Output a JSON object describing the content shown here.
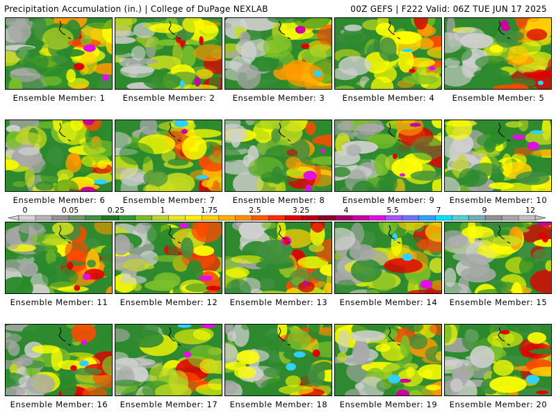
{
  "header": {
    "title": "Precipitation Accumulation (in.) | College of DuPage NEXLAB",
    "valid": "00Z GEFS | F222 Valid: 06Z TUE JUN 17 2025"
  },
  "members": [
    "Ensemble Member: 1",
    "Ensemble Member: 2",
    "Ensemble Member: 3",
    "Ensemble Member: 4",
    "Ensemble Member: 5",
    "Ensemble Member: 6",
    "Ensemble Member: 7",
    "Ensemble Member: 8",
    "Ensemble Member: 9",
    "Ensemble Member: 10",
    "Ensemble Member: 11",
    "Ensemble Member: 12",
    "Ensemble Member: 13",
    "Ensemble Member: 14",
    "Ensemble Member: 15",
    "Ensemble Member: 16",
    "Ensemble Member: 17",
    "Ensemble Member: 18",
    "Ensemble Member: 19",
    "Ensemble Member: 20"
  ],
  "colorbar": {
    "tick_labels": [
      "0",
      "0.05",
      "0.25",
      "1",
      "1.75",
      "2.5",
      "3.25",
      "4",
      "5.5",
      "7",
      "9",
      "12"
    ],
    "colors": [
      "#d4d4d4",
      "#b4b4b4",
      "#929292",
      "#6f936f",
      "#3f8f3f",
      "#1e7a1e",
      "#2f9b2f",
      "#79bc2a",
      "#b9d62a",
      "#e8e820",
      "#fff000",
      "#ffd000",
      "#ffb000",
      "#ff8c00",
      "#ff5a00",
      "#ff2a00",
      "#e00000",
      "#b40018",
      "#8c0028",
      "#a0006a",
      "#c800a0",
      "#e010e0",
      "#b050ff",
      "#7070ff",
      "#30a0ff",
      "#00e0ff",
      "#50d0d0",
      "#70b0b0",
      "#909090",
      "#a8a8a8",
      "#c0c0c0"
    ]
  }
}
